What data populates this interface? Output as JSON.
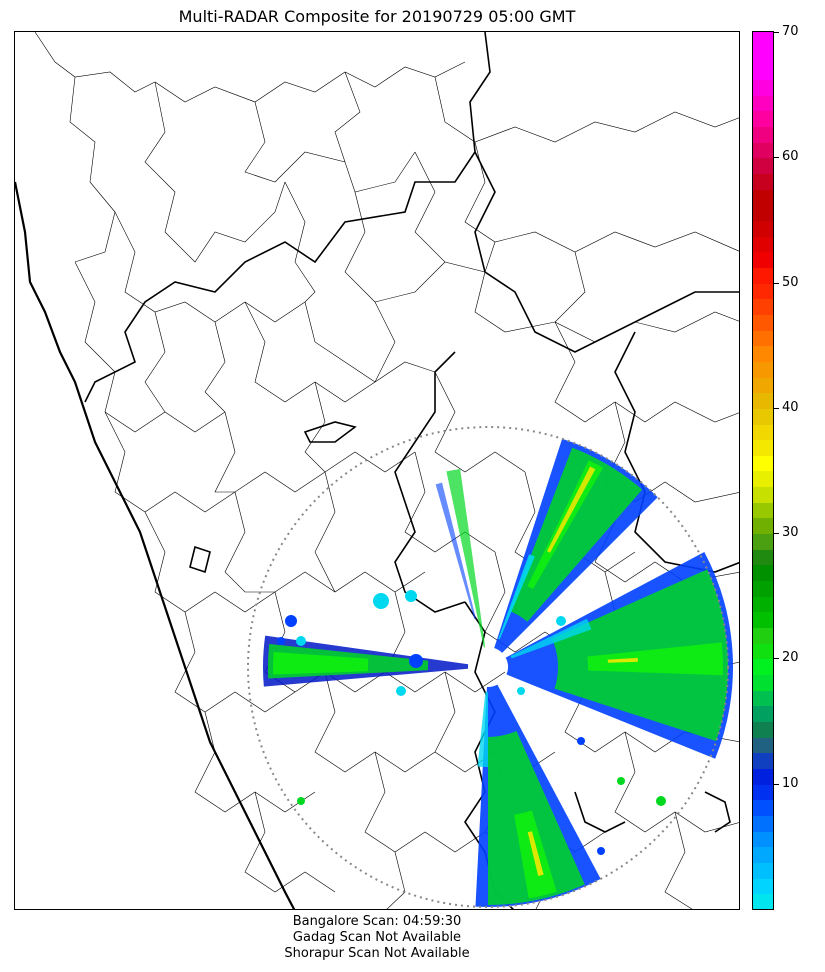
{
  "title": "Multi-RADAR Composite for 20190729 05:00 GMT",
  "footer": {
    "line1": "Bangalore Scan: 04:59:30",
    "line2": "Gadag Scan Not Available",
    "line3": "Shorapur Scan Not Available"
  },
  "colorbar": {
    "min": 0,
    "max": 70,
    "ticks": [
      "10",
      "20",
      "30",
      "40",
      "50",
      "60",
      "70"
    ],
    "tick_values": [
      10,
      20,
      30,
      40,
      50,
      60,
      70
    ],
    "colors": [
      "#00e5ee",
      "#00d4ff",
      "#00bfff",
      "#00a8ff",
      "#0090ff",
      "#0070ff",
      "#0050ff",
      "#0030f0",
      "#0020e0",
      "#1040c0",
      "#206080",
      "#108050",
      "#00a060",
      "#00c050",
      "#00e030",
      "#00f020",
      "#10e010",
      "#20d010",
      "#00c000",
      "#00b000",
      "#00a000",
      "#009000",
      "#208a10",
      "#4aa010",
      "#70b000",
      "#98c800",
      "#c8e000",
      "#e8f000",
      "#ffff00",
      "#f5e800",
      "#f0d800",
      "#e8c800",
      "#e8b800",
      "#f0a800",
      "#f89800",
      "#ff8800",
      "#ff7000",
      "#ff5800",
      "#ff4000",
      "#ff2800",
      "#ff1800",
      "#f00000",
      "#e00000",
      "#d00000",
      "#c00000",
      "#c00000",
      "#c80020",
      "#d00040",
      "#e00060",
      "#f00080",
      "#ff00a0",
      "#ff00c0",
      "#ff00e0",
      "#ff00ff",
      "#ff00ff",
      "#ff00ff"
    ]
  },
  "radar": {
    "name": "Bangalore",
    "colors": {
      "light": "#00d8f0",
      "blue": "#0040ff",
      "dark_blue": "#0018c8",
      "green": "#00d820",
      "bright_green": "#10f010",
      "yellow": "#e8e800",
      "range_ring": "#888888"
    }
  }
}
